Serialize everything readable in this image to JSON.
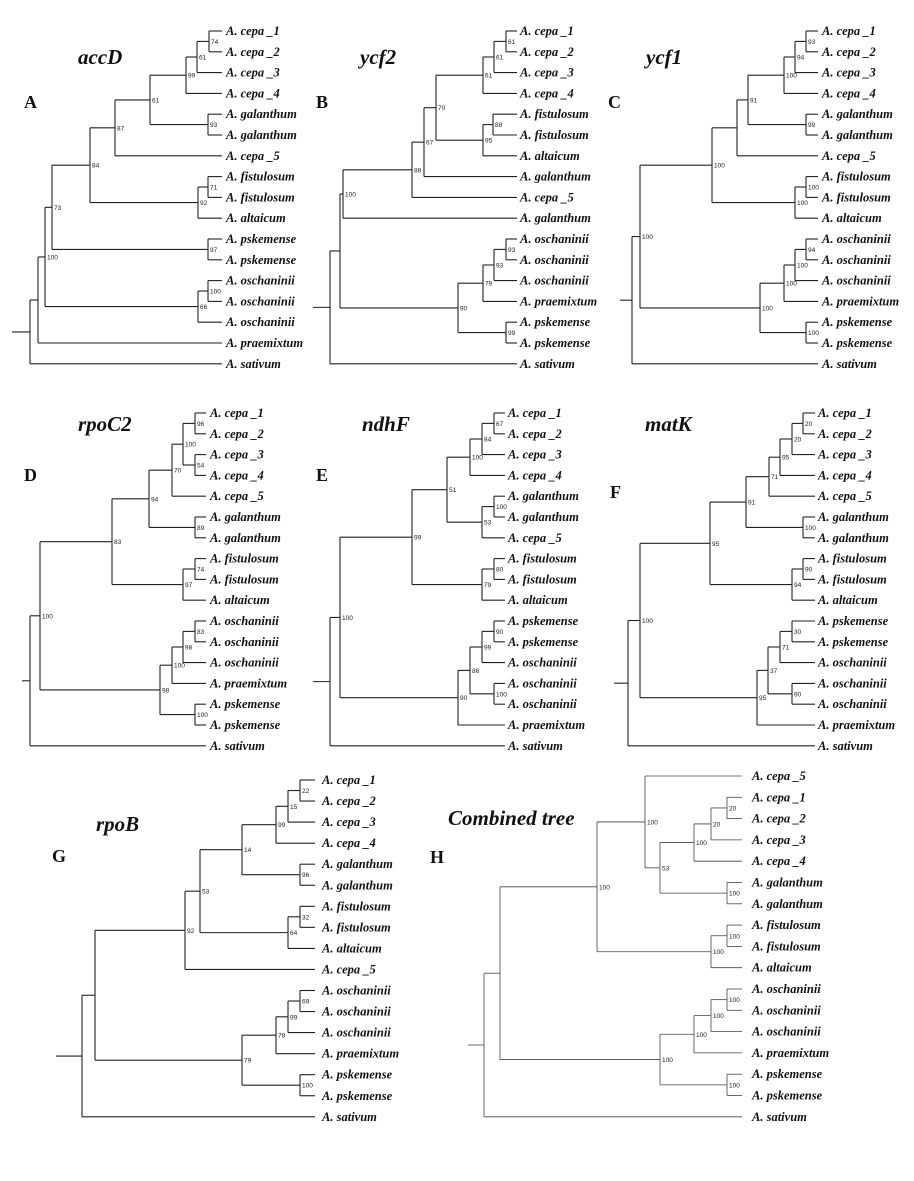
{
  "figure": {
    "panels": [
      {
        "letter": "A",
        "gene": "accD",
        "taxa": [
          "A. cepa _1",
          "A. cepa _2",
          "A. cepa _3",
          "A. cepa _4",
          "A. galanthum",
          "A. galanthum",
          "A. cepa _5",
          "A. fistulosum",
          "A. fistulosum",
          "A. altaicum",
          "A. pskemense",
          "A. pskemense",
          "A. oschaninii",
          "A. oschaninii",
          "A. oschaninii",
          "A. praemixtum",
          "A. sativum"
        ],
        "tree": {
          "c": [
            {
              "c": [
                {
                  "c": [
                    {
                      "c": [
                        {
                          "c": [
                            {
                              "c": [
                                {
                                  "c": [
                                    {
                                      "t": 0
                                    },
                                    {
                                      "t": 1
                                    }
                                  ],
                                  "b": "74"
                                },
                                {
                                  "t": 2
                                }
                              ],
                              "b": "61"
                            },
                            {
                              "t": 3
                            }
                          ],
                          "b": "99"
                        },
                        {
                          "c": [
                            {
                              "t": 4
                            },
                            {
                              "t": 5
                            }
                          ],
                          "b": "93"
                        }
                      ],
                      "b": "61"
                    },
                    {
                      "t": 6
                    }
                  ],
                  "b": "87"
                },
                {
                  "c": [
                    {
                      "c": [
                        {
                          "t": 7
                        },
                        {
                          "t": 8
                        }
                      ],
                      "b": "71"
                    },
                    {
                      "t": 9
                    }
                  ],
                  "b": "92"
                }
              ],
              "b": "84"
            },
            {
              "c": [
                {
                  "t": 10
                },
                {
                  "t": 11
                }
              ],
              "b": "97"
            }
          ],
          "b": "73"
        },
        "outer": {
          "c": [
            {
              "c": [
                {
                  "c": [
                    {
                      "t": 12
                    },
                    {
                      "t": 13
                    }
                  ],
                  "b": "100"
                },
                {
                  "t": 14
                }
              ],
              "b": "66"
            },
            "INNER"
          ],
          "b": "100"
        },
        "top": {
          "c": [
            "OUTER",
            {
              "t": 15
            }
          ]
        },
        "root": {
          "c": [
            "TOP",
            {
              "t": 16
            }
          ]
        }
      },
      {
        "letter": "B",
        "gene": "ycf2",
        "taxa": [
          "A. cepa _1",
          "A. cepa _2",
          "A. cepa _3",
          "A. cepa _4",
          "A. fistulosum",
          "A. fistulosum",
          "A. altaicum",
          "A. galanthum",
          "A. cepa _5",
          "A. galanthum",
          "A. oschaninii",
          "A. oschaninii",
          "A. oschaninii",
          "A. praemixtum",
          "A. pskemense",
          "A. pskemense",
          "A. sativum"
        ]
      },
      {
        "letter": "C",
        "gene": "ycf1",
        "taxa": [
          "A. cepa _1",
          "A. cepa _2",
          "A. cepa _3",
          "A. cepa _4",
          "A. galanthum",
          "A. galanthum",
          "A. cepa _5",
          "A. fistulosum",
          "A. fistulosum",
          "A. altaicum",
          "A. oschaninii",
          "A. oschaninii",
          "A. oschaninii",
          "A. praemixtum",
          "A. pskemense",
          "A. pskemense",
          "A. sativum"
        ]
      },
      {
        "letter": "D",
        "gene": "rpoC2",
        "taxa": [
          "A. cepa _1",
          "A. cepa _2",
          "A. cepa _3",
          "A. cepa _4",
          "A. cepa _5",
          "A. galanthum",
          "A. galanthum",
          "A. fistulosum",
          "A. fistulosum",
          "A. altaicum",
          "A. oschaninii",
          "A. oschaninii",
          "A. oschaninii",
          "A. praemixtum",
          "A. pskemense",
          "A. pskemense",
          "A. sativum"
        ]
      },
      {
        "letter": "E",
        "gene": "ndhF",
        "taxa": [
          "A. cepa _1",
          "A. cepa _2",
          "A. cepa _3",
          "A. cepa _4",
          "A. galanthum",
          "A. galanthum",
          "A. cepa _5",
          "A. fistulosum",
          "A. fistulosum",
          "A. altaicum",
          "A. pskemense",
          "A. pskemense",
          "A. oschaninii",
          "A. oschaninii",
          "A. oschaninii",
          "A. praemixtum",
          "A. sativum"
        ]
      },
      {
        "letter": "F",
        "gene": "matK",
        "taxa": [
          "A. cepa _1",
          "A. cepa _2",
          "A. cepa _3",
          "A. cepa _4",
          "A. cepa _5",
          "A. galanthum",
          "A. galanthum",
          "A. fistulosum",
          "A. fistulosum",
          "A. altaicum",
          "A. pskemense",
          "A. pskemense",
          "A. oschaninii",
          "A. oschaninii",
          "A. oschaninii",
          "A. praemixtum",
          "A. sativum"
        ]
      },
      {
        "letter": "G",
        "gene": "rpoB",
        "taxa": [
          "A. cepa _1",
          "A. cepa _2",
          "A. cepa _3",
          "A. cepa _4",
          "A. galanthum",
          "A. galanthum",
          "A. fistulosum",
          "A. fistulosum",
          "A. altaicum",
          "A. cepa _5",
          "A. oschaninii",
          "A. oschaninii",
          "A. oschaninii",
          "A. praemixtum",
          "A. pskemense",
          "A. pskemense",
          "A. sativum"
        ]
      },
      {
        "letter": "H",
        "gene": "Combined tree",
        "taxa": [
          "A. cepa _5",
          "A. cepa _1",
          "A. cepa _2",
          "A. cepa _3",
          "A. cepa _4",
          "A. galanthum",
          "A. galanthum",
          "A. fistulosum",
          "A. fistulosum",
          "A. altaicum",
          "A. oschaninii",
          "A. oschaninii",
          "A. oschaninii",
          "A. praemixtum",
          "A. pskemense",
          "A. pskemense",
          "A. sativum"
        ]
      }
    ]
  }
}
